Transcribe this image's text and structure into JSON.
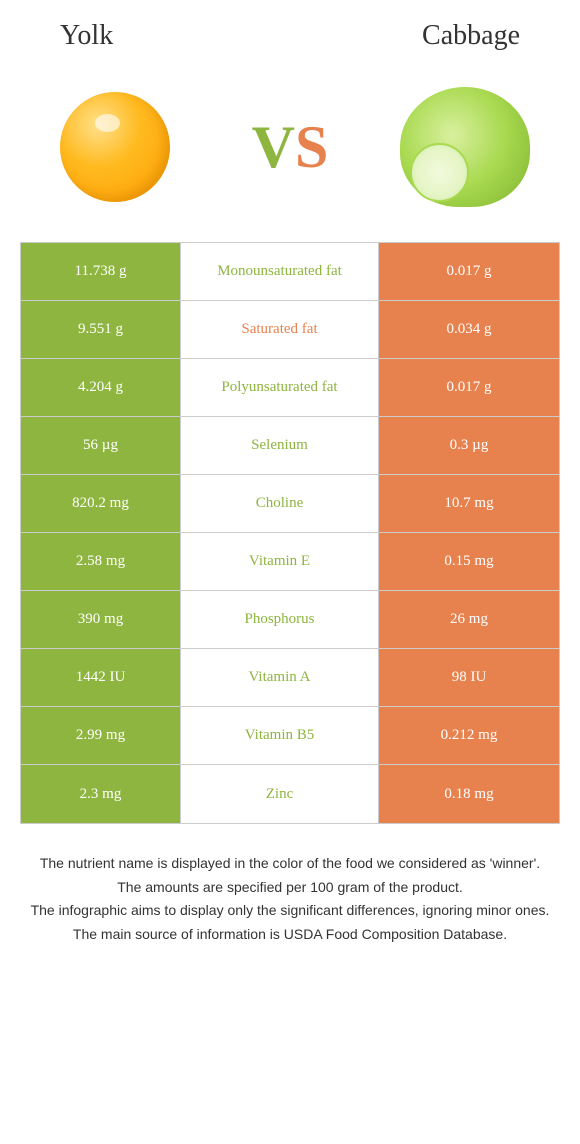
{
  "colors": {
    "left": "#8eb53f",
    "right": "#e7824e",
    "mid_left": "#8eb53f",
    "mid_right": "#e7824e"
  },
  "titles": {
    "left": "Yolk",
    "right": "Cabbage"
  },
  "vs": {
    "v": "V",
    "s": "S"
  },
  "rows": [
    {
      "left": "11.738 g",
      "mid": "Monounsaturated fat",
      "right": "0.017 g",
      "winner": "left"
    },
    {
      "left": "9.551 g",
      "mid": "Saturated fat",
      "right": "0.034 g",
      "winner": "right"
    },
    {
      "left": "4.204 g",
      "mid": "Polyunsaturated fat",
      "right": "0.017 g",
      "winner": "left"
    },
    {
      "left": "56 µg",
      "mid": "Selenium",
      "right": "0.3 µg",
      "winner": "left"
    },
    {
      "left": "820.2 mg",
      "mid": "Choline",
      "right": "10.7 mg",
      "winner": "left"
    },
    {
      "left": "2.58 mg",
      "mid": "Vitamin E",
      "right": "0.15 mg",
      "winner": "left"
    },
    {
      "left": "390 mg",
      "mid": "Phosphorus",
      "right": "26 mg",
      "winner": "left"
    },
    {
      "left": "1442 IU",
      "mid": "Vitamin A",
      "right": "98 IU",
      "winner": "left"
    },
    {
      "left": "2.99 mg",
      "mid": "Vitamin B5",
      "right": "0.212 mg",
      "winner": "left"
    },
    {
      "left": "2.3 mg",
      "mid": "Zinc",
      "right": "0.18 mg",
      "winner": "left"
    }
  ],
  "notes": [
    "The nutrient name is displayed in the color of the food we considered as 'winner'.",
    "The amounts are specified per 100 gram of the product.",
    "The infographic aims to display only the significant differences, ignoring minor ones.",
    "The main source of information is USDA Food Composition Database."
  ]
}
